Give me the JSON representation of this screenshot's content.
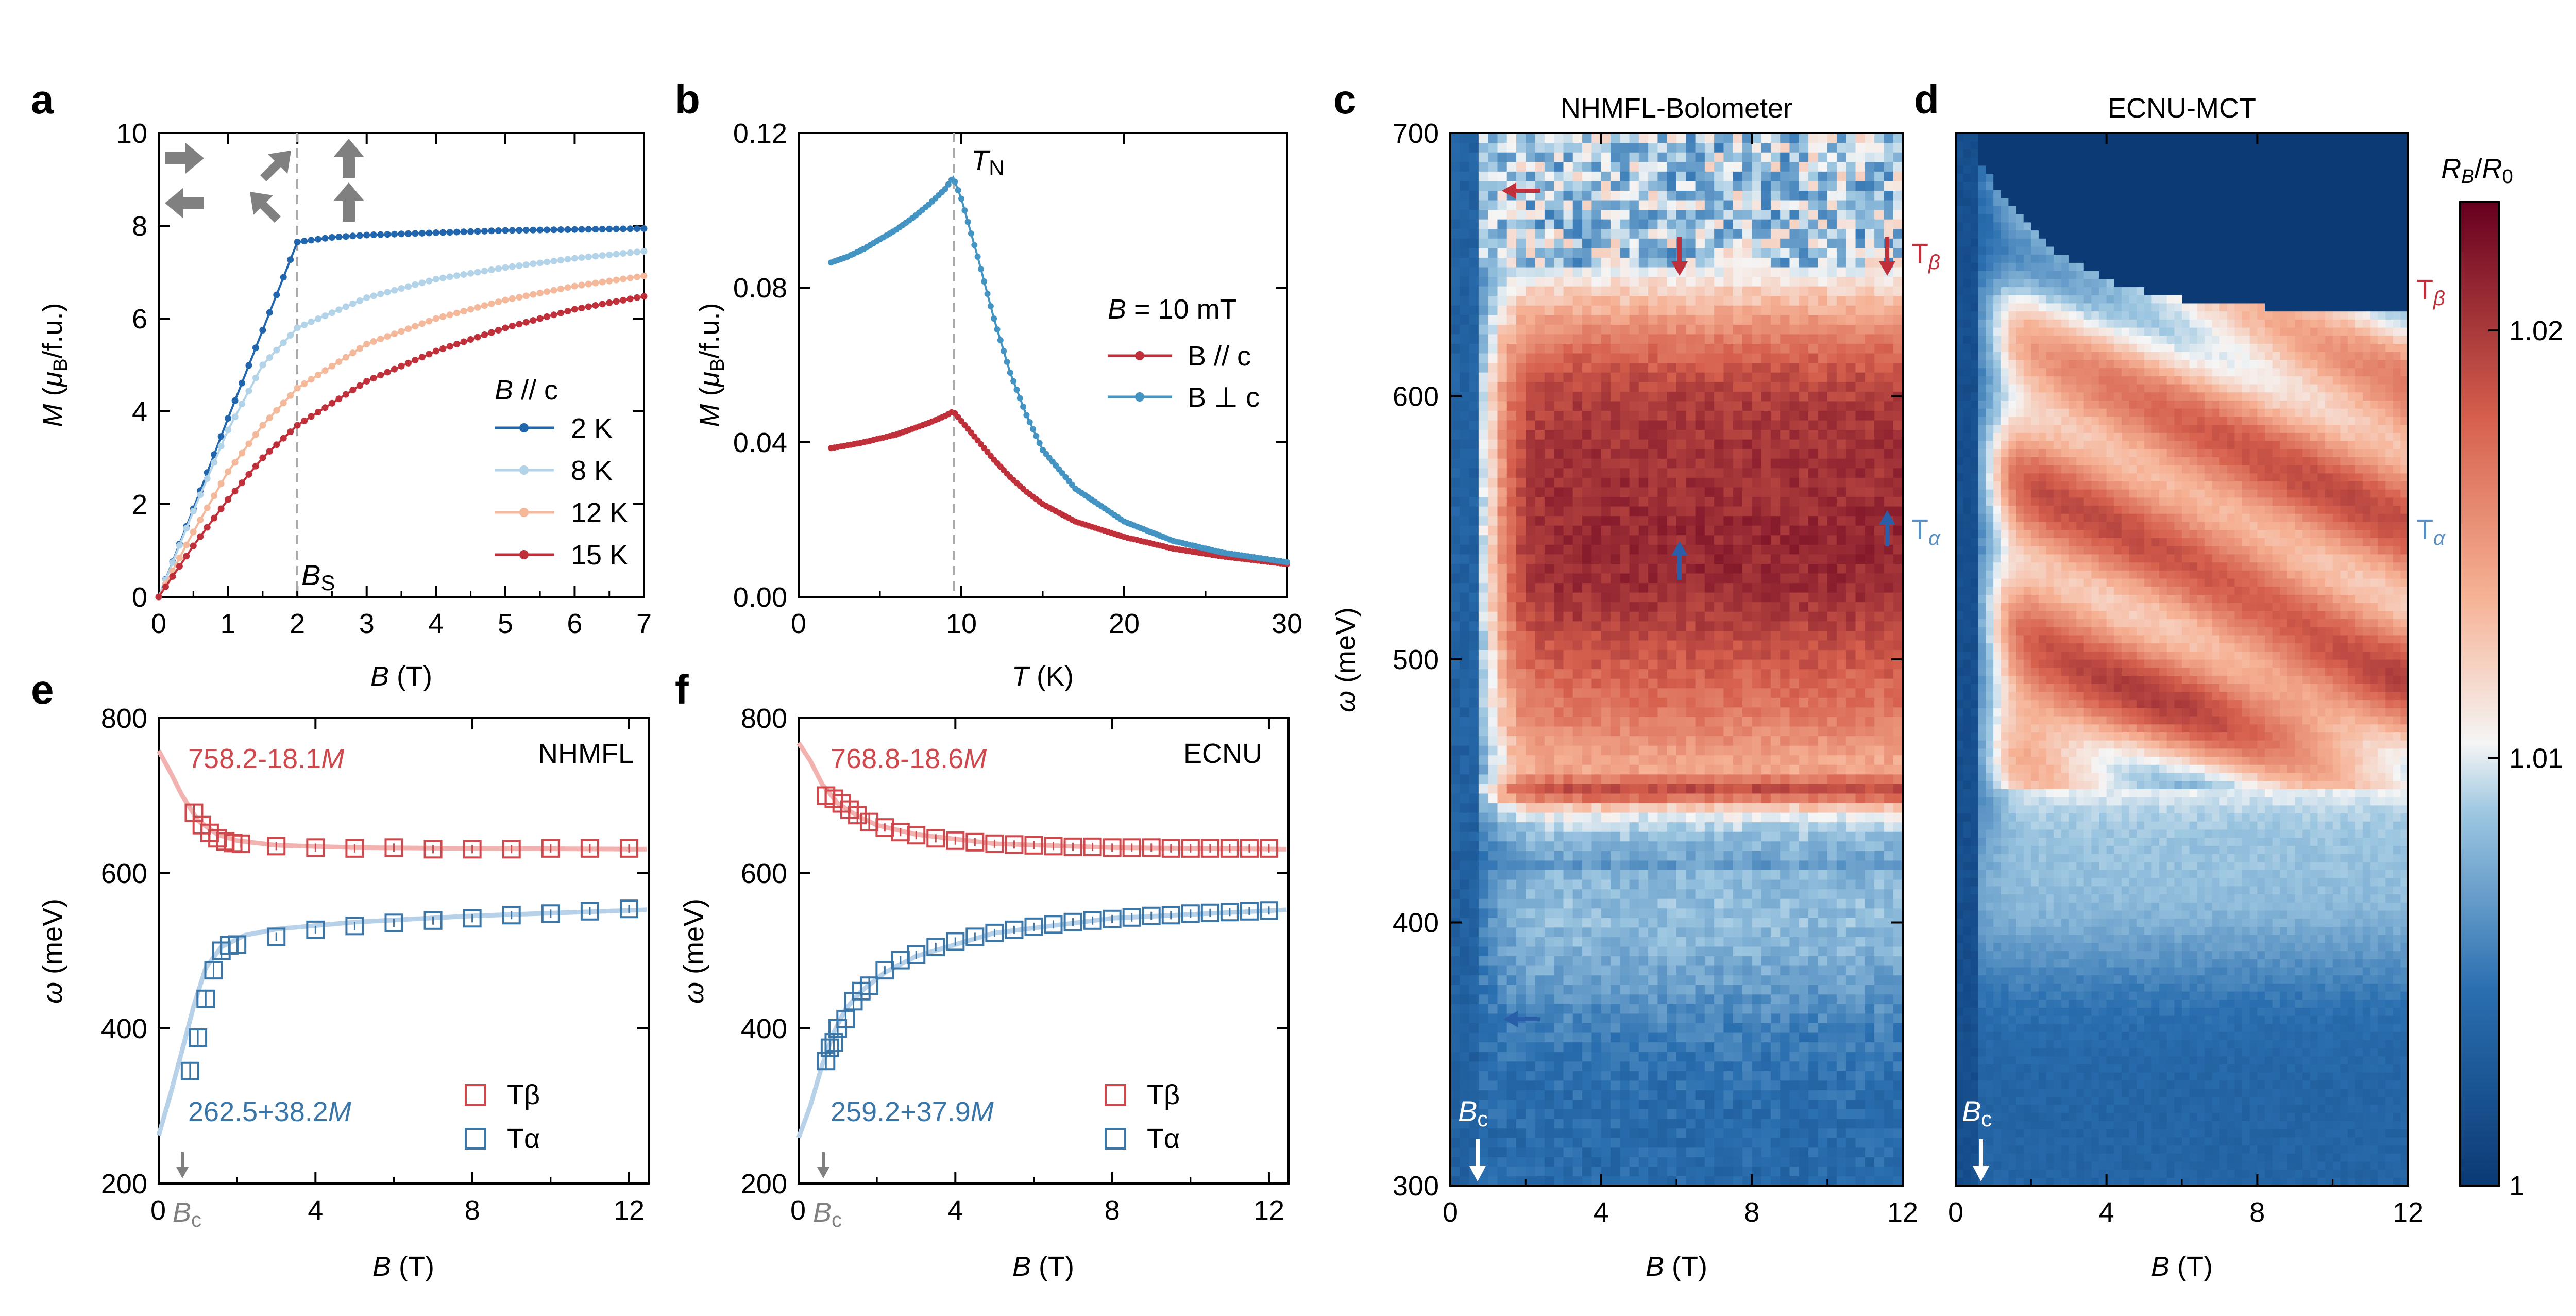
{
  "colors": {
    "blue_dark": "#2166ac",
    "blue_mid": "#4393c3",
    "blue_light": "#b2d3e8",
    "red_light": "#f4b89a",
    "red_dark": "#c0303a",
    "grey": "#808080",
    "formula_red": "#d0474c",
    "formula_blue": "#3a76a8"
  },
  "figure_labels": [
    "a",
    "b",
    "c",
    "d",
    "e",
    "f"
  ],
  "chart_data": [
    {
      "id": "a",
      "type": "line",
      "xlabel": "B (T)",
      "ylabel": "M (μB/f.u.)",
      "xlim": [
        0,
        7
      ],
      "ylim": [
        0,
        10
      ],
      "xticks": [
        "0",
        "1",
        "2",
        "3",
        "4",
        "5",
        "6",
        "7"
      ],
      "yticks": [
        "0",
        "2",
        "4",
        "6",
        "8",
        "10"
      ],
      "legend_title": "B // c",
      "legend_position": "center-right",
      "annotation": "BS",
      "series": [
        {
          "name": "2 K",
          "values": [
            [
              0,
              0
            ],
            [
              0.5,
              1.9
            ],
            [
              1,
              3.85
            ],
            [
              1.5,
              5.75
            ],
            [
              2,
              7.65
            ],
            [
              2.5,
              7.75
            ],
            [
              3,
              7.8
            ],
            [
              4,
              7.85
            ],
            [
              5,
              7.9
            ],
            [
              6,
              7.92
            ],
            [
              7,
              7.94
            ]
          ]
        },
        {
          "name": "8 K",
          "values": [
            [
              0,
              0
            ],
            [
              0.5,
              1.85
            ],
            [
              1,
              3.6
            ],
            [
              1.5,
              5.0
            ],
            [
              2,
              5.8
            ],
            [
              3,
              6.45
            ],
            [
              4,
              6.85
            ],
            [
              5,
              7.1
            ],
            [
              6,
              7.3
            ],
            [
              7,
              7.45
            ]
          ]
        },
        {
          "name": "12 K",
          "values": [
            [
              0,
              0
            ],
            [
              0.5,
              1.4
            ],
            [
              1,
              2.7
            ],
            [
              1.5,
              3.7
            ],
            [
              2,
              4.5
            ],
            [
              3,
              5.45
            ],
            [
              4,
              6.0
            ],
            [
              5,
              6.4
            ],
            [
              6,
              6.7
            ],
            [
              7,
              6.92
            ]
          ]
        },
        {
          "name": "15 K",
          "values": [
            [
              0,
              0
            ],
            [
              0.5,
              1.1
            ],
            [
              1,
              2.1
            ],
            [
              1.5,
              3.0
            ],
            [
              2,
              3.7
            ],
            [
              3,
              4.65
            ],
            [
              4,
              5.3
            ],
            [
              5,
              5.8
            ],
            [
              6,
              6.2
            ],
            [
              7,
              6.48
            ]
          ]
        }
      ]
    },
    {
      "id": "b",
      "type": "line",
      "xlabel": "T (K)",
      "ylabel": "M (μB/f.u.)",
      "xlim": [
        0,
        30
      ],
      "ylim": [
        0,
        0.12
      ],
      "xticks": [
        "0",
        "10",
        "20",
        "30"
      ],
      "yticks": [
        "0.00",
        "0.04",
        "0.08",
        "0.12"
      ],
      "legend_title": "B = 10 mT",
      "legend_position": "center-right",
      "annotation": "TN",
      "series": [
        {
          "name": "B // c",
          "values": [
            [
              2,
              0.0385
            ],
            [
              3,
              0.0392
            ],
            [
              4,
              0.04
            ],
            [
              5,
              0.041
            ],
            [
              6,
              0.042
            ],
            [
              7,
              0.0435
            ],
            [
              8,
              0.045
            ],
            [
              9,
              0.0468
            ],
            [
              9.5,
              0.048
            ],
            [
              10,
              0.0455
            ],
            [
              11,
              0.0405
            ],
            [
              12,
              0.0355
            ],
            [
              13,
              0.031
            ],
            [
              14,
              0.0272
            ],
            [
              15,
              0.024
            ],
            [
              17,
              0.0195
            ],
            [
              20,
              0.0155
            ],
            [
              23,
              0.0125
            ],
            [
              26,
              0.0105
            ],
            [
              30,
              0.0085
            ]
          ]
        },
        {
          "name": "B ⊥ c",
          "values": [
            [
              2,
              0.0865
            ],
            [
              3,
              0.088
            ],
            [
              4,
              0.09
            ],
            [
              5,
              0.0925
            ],
            [
              6,
              0.095
            ],
            [
              7,
              0.098
            ],
            [
              8,
              0.1015
            ],
            [
              9,
              0.1055
            ],
            [
              9.5,
              0.1085
            ],
            [
              10,
              0.103
            ],
            [
              11,
              0.088
            ],
            [
              12,
              0.072
            ],
            [
              13,
              0.058
            ],
            [
              14,
              0.047
            ],
            [
              15,
              0.038
            ],
            [
              17,
              0.028
            ],
            [
              20,
              0.0195
            ],
            [
              23,
              0.0145
            ],
            [
              26,
              0.0115
            ],
            [
              30,
              0.009
            ]
          ]
        }
      ]
    },
    {
      "id": "c",
      "type": "heatmap",
      "title": "NHMFL-Bolometer",
      "xlabel": "B (T)",
      "ylabel": "ω (meV)",
      "xlim": [
        0,
        12
      ],
      "ylim": [
        300,
        700
      ],
      "xticks": [
        "0",
        "4",
        "8",
        "12"
      ],
      "yticks": [
        "300",
        "400",
        "500",
        "600",
        "700"
      ],
      "annotations": [
        "Tβ",
        "Tα",
        "Bc"
      ]
    },
    {
      "id": "d",
      "type": "heatmap",
      "title": "ECNU-MCT",
      "xlabel": "B (T)",
      "xlim": [
        0,
        12
      ],
      "ylim": [
        300,
        700
      ],
      "xticks": [
        "0",
        "4",
        "8",
        "12"
      ],
      "annotations": [
        "Tβ",
        "Tα",
        "Bc"
      ],
      "colorbar_label": "RB/R0",
      "colorbar_range": [
        1.0,
        1.023
      ],
      "colorbar_ticks": [
        "1",
        "1.01",
        "1.02"
      ]
    },
    {
      "id": "e",
      "type": "scatter",
      "xlabel": "B (T)",
      "ylabel": "ω (meV)",
      "xlim": [
        0,
        12.5
      ],
      "ylim": [
        200,
        800
      ],
      "xticks": [
        "0",
        "4",
        "8",
        "12"
      ],
      "yticks": [
        "200",
        "400",
        "600",
        "800"
      ],
      "tag": "NHMFL",
      "formula_top": "758.2-18.1M",
      "formula_bottom": "262.5+38.2M",
      "bc_label": "Bc",
      "legend": [
        "Tβ",
        "Tα"
      ],
      "series": [
        {
          "name": "Tβ",
          "values": [
            [
              0.9,
              678
            ],
            [
              1.1,
              662
            ],
            [
              1.3,
              652
            ],
            [
              1.5,
              645
            ],
            [
              1.7,
              641
            ],
            [
              1.9,
              639
            ],
            [
              2.1,
              638
            ],
            [
              3,
              635
            ],
            [
              4,
              633
            ],
            [
              5,
              632
            ],
            [
              6,
              633
            ],
            [
              7,
              631
            ],
            [
              8,
              631
            ],
            [
              9,
              631
            ],
            [
              10,
              632
            ],
            [
              11,
              632
            ],
            [
              12,
              632
            ]
          ]
        },
        {
          "name": "Tα",
          "values": [
            [
              0.8,
              345
            ],
            [
              1.0,
              388
            ],
            [
              1.2,
              438
            ],
            [
              1.4,
              475
            ],
            [
              1.6,
              500
            ],
            [
              1.8,
              507
            ],
            [
              2.0,
              508
            ],
            [
              3,
              518
            ],
            [
              4,
              527
            ],
            [
              5,
              532
            ],
            [
              6,
              536
            ],
            [
              7,
              539
            ],
            [
              8,
              542
            ],
            [
              9,
              546
            ],
            [
              10,
              548
            ],
            [
              11,
              551
            ],
            [
              12,
              554
            ]
          ]
        }
      ],
      "fit_curves": [
        {
          "name": "Tβ fit",
          "values": [
            [
              0,
              758
            ],
            [
              0.3,
              730
            ],
            [
              0.6,
              700
            ],
            [
              1,
              668
            ],
            [
              1.5,
              650
            ],
            [
              2,
              642
            ],
            [
              3,
              636
            ],
            [
              5,
              633
            ],
            [
              8,
              632
            ],
            [
              12.5,
              631
            ]
          ]
        },
        {
          "name": "Tα fit",
          "values": [
            [
              0,
              262
            ],
            [
              0.3,
              315
            ],
            [
              0.6,
              372
            ],
            [
              0.9,
              430
            ],
            [
              1.2,
              478
            ],
            [
              1.6,
              505
            ],
            [
              2.2,
              520
            ],
            [
              3,
              528
            ],
            [
              5,
              537
            ],
            [
              8,
              545
            ],
            [
              12.5,
              553
            ]
          ]
        }
      ]
    },
    {
      "id": "f",
      "type": "scatter",
      "xlabel": "B (T)",
      "ylabel": "ω (meV)",
      "xlim": [
        0,
        12.5
      ],
      "ylim": [
        200,
        800
      ],
      "xticks": [
        "0",
        "4",
        "8",
        "12"
      ],
      "yticks": [
        "200",
        "400",
        "600",
        "800"
      ],
      "tag": "ECNU",
      "formula_top": "768.8-18.6M",
      "formula_bottom": "259.2+37.9M",
      "bc_label": "Bc",
      "legend": [
        "Tβ",
        "Tα"
      ],
      "series": [
        {
          "name": "Tβ",
          "values": [
            [
              0.7,
              700
            ],
            [
              0.9,
              696
            ],
            [
              1.1,
              690
            ],
            [
              1.3,
              682
            ],
            [
              1.5,
              675
            ],
            [
              1.8,
              666
            ],
            [
              2.2,
              659
            ],
            [
              2.6,
              653
            ],
            [
              3,
              649
            ],
            [
              3.5,
              645
            ],
            [
              4,
              642
            ],
            [
              4.5,
              640
            ],
            [
              5,
              638
            ],
            [
              5.5,
              637
            ],
            [
              6,
              636
            ],
            [
              6.5,
              635
            ],
            [
              7,
              634
            ],
            [
              7.5,
              634
            ],
            [
              8,
              633
            ],
            [
              8.5,
              633
            ],
            [
              9,
              633
            ],
            [
              9.5,
              632
            ],
            [
              10,
              632
            ],
            [
              10.5,
              632
            ],
            [
              11,
              632
            ],
            [
              11.5,
              632
            ],
            [
              12,
              632
            ]
          ]
        },
        {
          "name": "Tα",
          "values": [
            [
              0.7,
              358
            ],
            [
              0.8,
              375
            ],
            [
              0.9,
              382
            ],
            [
              1.0,
              400
            ],
            [
              1.2,
              412
            ],
            [
              1.4,
              435
            ],
            [
              1.6,
              448
            ],
            [
              1.8,
              455
            ],
            [
              2.2,
              475
            ],
            [
              2.6,
              488
            ],
            [
              3,
              495
            ],
            [
              3.5,
              505
            ],
            [
              4,
              512
            ],
            [
              4.5,
              518
            ],
            [
              5,
              523
            ],
            [
              5.5,
              527
            ],
            [
              6,
              531
            ],
            [
              6.5,
              534
            ],
            [
              7,
              537
            ],
            [
              7.5,
              539
            ],
            [
              8,
              541
            ],
            [
              8.5,
              543
            ],
            [
              9,
              545
            ],
            [
              9.5,
              546
            ],
            [
              10,
              548
            ],
            [
              10.5,
              549
            ],
            [
              11,
              550
            ],
            [
              11.5,
              551
            ],
            [
              12,
              552
            ]
          ]
        }
      ],
      "fit_curves": [
        {
          "name": "Tβ fit",
          "values": [
            [
              0,
              768
            ],
            [
              0.3,
              745
            ],
            [
              0.6,
              715
            ],
            [
              1,
              690
            ],
            [
              1.5,
              674
            ],
            [
              2,
              662
            ],
            [
              3,
              650
            ],
            [
              5,
              638
            ],
            [
              8,
              633
            ],
            [
              12.5,
              631
            ]
          ]
        },
        {
          "name": "Tα fit",
          "values": [
            [
              0,
              259
            ],
            [
              0.3,
              300
            ],
            [
              0.6,
              352
            ],
            [
              0.9,
              395
            ],
            [
              1.2,
              425
            ],
            [
              1.6,
              448
            ],
            [
              2.2,
              472
            ],
            [
              3,
              493
            ],
            [
              5,
              523
            ],
            [
              8,
              542
            ],
            [
              12.5,
              553
            ]
          ]
        }
      ]
    }
  ]
}
